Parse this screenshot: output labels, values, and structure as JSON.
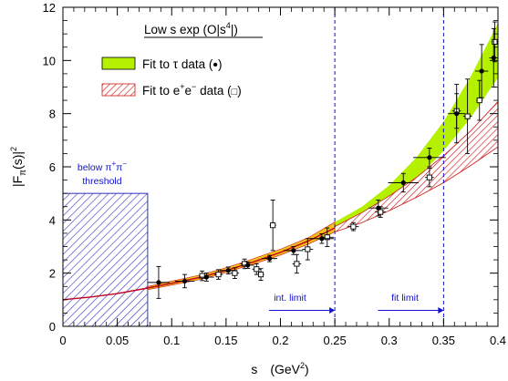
{
  "chart_data": {
    "type": "scatter",
    "title": "Low s exp (O|s⁴|)",
    "title_parts": {
      "pre": "Low s exp (O|s",
      "sup": "4",
      "post": "|)"
    },
    "xlabel": {
      "main": "s",
      "unit_pre": "(GeV",
      "unit_sup": "2",
      "unit_post": ")"
    },
    "ylabel": {
      "pre": "|F",
      "sub": "π",
      "mid": "(s)|",
      "sup": "2"
    },
    "xlim": [
      0,
      0.4
    ],
    "ylim": [
      0,
      12
    ],
    "x_ticks": [
      "0",
      "0.05",
      "0.1",
      "0.15",
      "0.2",
      "0.25",
      "0.3",
      "0.35",
      "0.4"
    ],
    "y_ticks": [
      "0",
      "2",
      "4",
      "6",
      "8",
      "10",
      "12"
    ],
    "legend": {
      "position": "top-center",
      "tau_label": {
        "pre": "Fit to τ data (",
        "sym": "•",
        "post": ")"
      },
      "ee_label": {
        "pre": "Fit to e",
        "sup1": "+",
        "mid": "e",
        "sup2": "−",
        "post": " data (",
        "sym": "□",
        "end": ")"
      }
    },
    "colors": {
      "tau_band": "#b4f000",
      "ee_band": "#d01818",
      "central_line": "#c00020",
      "blue": "#1010d0",
      "threshold_fill": "#3030c0"
    },
    "threshold_region": {
      "x": [
        0,
        0.0779
      ],
      "y": [
        0,
        5
      ]
    },
    "threshold_label": {
      "line1_pre": "below π",
      "line1_sup1": "+",
      "line1_mid": "π",
      "line1_sup2": "−",
      "line2": "threshold"
    },
    "vertical_lines": [
      {
        "x": 0.25,
        "label": "int. limit"
      },
      {
        "x": 0.35,
        "label": "fit limit"
      }
    ],
    "tau_band": [
      {
        "x": 0.25,
        "lo": 3.72,
        "hi": 3.92
      },
      {
        "x": 0.275,
        "lo": 4.1,
        "hi": 4.5
      },
      {
        "x": 0.3,
        "lo": 4.72,
        "hi": 5.3
      },
      {
        "x": 0.325,
        "lo": 5.55,
        "hi": 6.35
      },
      {
        "x": 0.35,
        "lo": 6.6,
        "hi": 7.7
      },
      {
        "x": 0.375,
        "lo": 7.85,
        "hi": 9.4
      },
      {
        "x": 0.4,
        "lo": 9.35,
        "hi": 11.4
      }
    ],
    "ee_band": [
      {
        "x": 0.25,
        "lo": 3.55,
        "hi": 3.75
      },
      {
        "x": 0.275,
        "lo": 3.9,
        "hi": 4.28
      },
      {
        "x": 0.3,
        "lo": 4.35,
        "hi": 4.9
      },
      {
        "x": 0.325,
        "lo": 4.85,
        "hi": 5.6
      },
      {
        "x": 0.35,
        "lo": 5.4,
        "hi": 6.42
      },
      {
        "x": 0.375,
        "lo": 6.05,
        "hi": 7.35
      },
      {
        "x": 0.4,
        "lo": 6.75,
        "hi": 8.45
      }
    ],
    "low_band": [
      {
        "x": 0.078,
        "lo": 1.38,
        "hi": 1.5
      },
      {
        "x": 0.1,
        "lo": 1.55,
        "hi": 1.7
      },
      {
        "x": 0.125,
        "lo": 1.75,
        "hi": 1.92
      },
      {
        "x": 0.15,
        "lo": 2.03,
        "hi": 2.2
      },
      {
        "x": 0.175,
        "lo": 2.34,
        "hi": 2.54
      },
      {
        "x": 0.2,
        "lo": 2.68,
        "hi": 2.9
      },
      {
        "x": 0.225,
        "lo": 3.08,
        "hi": 3.32
      },
      {
        "x": 0.25,
        "lo": 3.55,
        "hi": 3.92
      }
    ],
    "central_curve": [
      {
        "x": 0,
        "y": 1.0
      },
      {
        "x": 0.025,
        "y": 1.1
      },
      {
        "x": 0.05,
        "y": 1.23
      },
      {
        "x": 0.078,
        "y": 1.44
      },
      {
        "x": 0.1,
        "y": 1.62
      },
      {
        "x": 0.125,
        "y": 1.83
      },
      {
        "x": 0.15,
        "y": 2.1
      },
      {
        "x": 0.175,
        "y": 2.42
      },
      {
        "x": 0.2,
        "y": 2.78
      },
      {
        "x": 0.225,
        "y": 3.2
      },
      {
        "x": 0.25,
        "y": 3.7
      }
    ],
    "tau_points": [
      {
        "x": 0.088,
        "y": 1.65,
        "ex": 0.01,
        "ey": 0.6
      },
      {
        "x": 0.112,
        "y": 1.7,
        "ex": 0.009,
        "ey": 0.25
      },
      {
        "x": 0.132,
        "y": 1.85,
        "ex": 0.007,
        "ey": 0.15
      },
      {
        "x": 0.152,
        "y": 2.1,
        "ex": 0.008,
        "ey": 0.13
      },
      {
        "x": 0.17,
        "y": 2.3,
        "ex": 0.006,
        "ey": 0.12
      },
      {
        "x": 0.19,
        "y": 2.55,
        "ex": 0.007,
        "ey": 0.12
      },
      {
        "x": 0.212,
        "y": 2.85,
        "ex": 0.009,
        "ey": 0.15
      },
      {
        "x": 0.238,
        "y": 3.3,
        "ex": 0.011,
        "ey": 0.18
      },
      {
        "x": 0.29,
        "y": 4.45,
        "ex": 0.009,
        "ey": 0.3
      },
      {
        "x": 0.313,
        "y": 5.4,
        "ex": 0.014,
        "ey": 0.35
      },
      {
        "x": 0.337,
        "y": 6.35,
        "ex": 0.015,
        "ey": 0.35
      },
      {
        "x": 0.362,
        "y": 8.0,
        "ex": 0.008,
        "ey": 1.1
      },
      {
        "x": 0.385,
        "y": 9.6,
        "ex": 0.006,
        "ey": 1.0
      },
      {
        "x": 0.396,
        "y": 10.1,
        "ex": 0.004,
        "ey": 1.1
      }
    ],
    "ee_points": [
      {
        "x": 0.128,
        "y": 1.9,
        "ex": 0.003,
        "ey": 0.18
      },
      {
        "x": 0.143,
        "y": 1.95,
        "ex": 0.004,
        "ey": 0.18
      },
      {
        "x": 0.158,
        "y": 2.0,
        "ex": 0.004,
        "ey": 0.2
      },
      {
        "x": 0.167,
        "y": 2.35,
        "ex": 0.004,
        "ey": 0.18
      },
      {
        "x": 0.178,
        "y": 2.15,
        "ex": 0.004,
        "ey": 0.2
      },
      {
        "x": 0.182,
        "y": 1.95,
        "ex": 0.003,
        "ey": 0.22
      },
      {
        "x": 0.193,
        "y": 3.8,
        "ex": 0.003,
        "ey": 0.95
      },
      {
        "x": 0.215,
        "y": 2.35,
        "ex": 0.004,
        "ey": 0.35
      },
      {
        "x": 0.225,
        "y": 2.9,
        "ex": 0.005,
        "ey": 0.4
      },
      {
        "x": 0.243,
        "y": 3.35,
        "ex": 0.006,
        "ey": 0.35
      },
      {
        "x": 0.267,
        "y": 3.75,
        "ex": 0.005,
        "ey": 0.15
      },
      {
        "x": 0.292,
        "y": 4.3,
        "ex": 0.005,
        "ey": 0.2
      },
      {
        "x": 0.337,
        "y": 5.6,
        "ex": 0.004,
        "ey": 0.35
      },
      {
        "x": 0.362,
        "y": 8.1,
        "ex": 0.004,
        "ey": 0.65
      },
      {
        "x": 0.372,
        "y": 7.9,
        "ex": 0.004,
        "ey": 1.4
      },
      {
        "x": 0.383,
        "y": 8.5,
        "ex": 0.003,
        "ey": 0.75
      },
      {
        "x": 0.397,
        "y": 10.7,
        "ex": 0.003,
        "ey": 0.75
      }
    ]
  }
}
